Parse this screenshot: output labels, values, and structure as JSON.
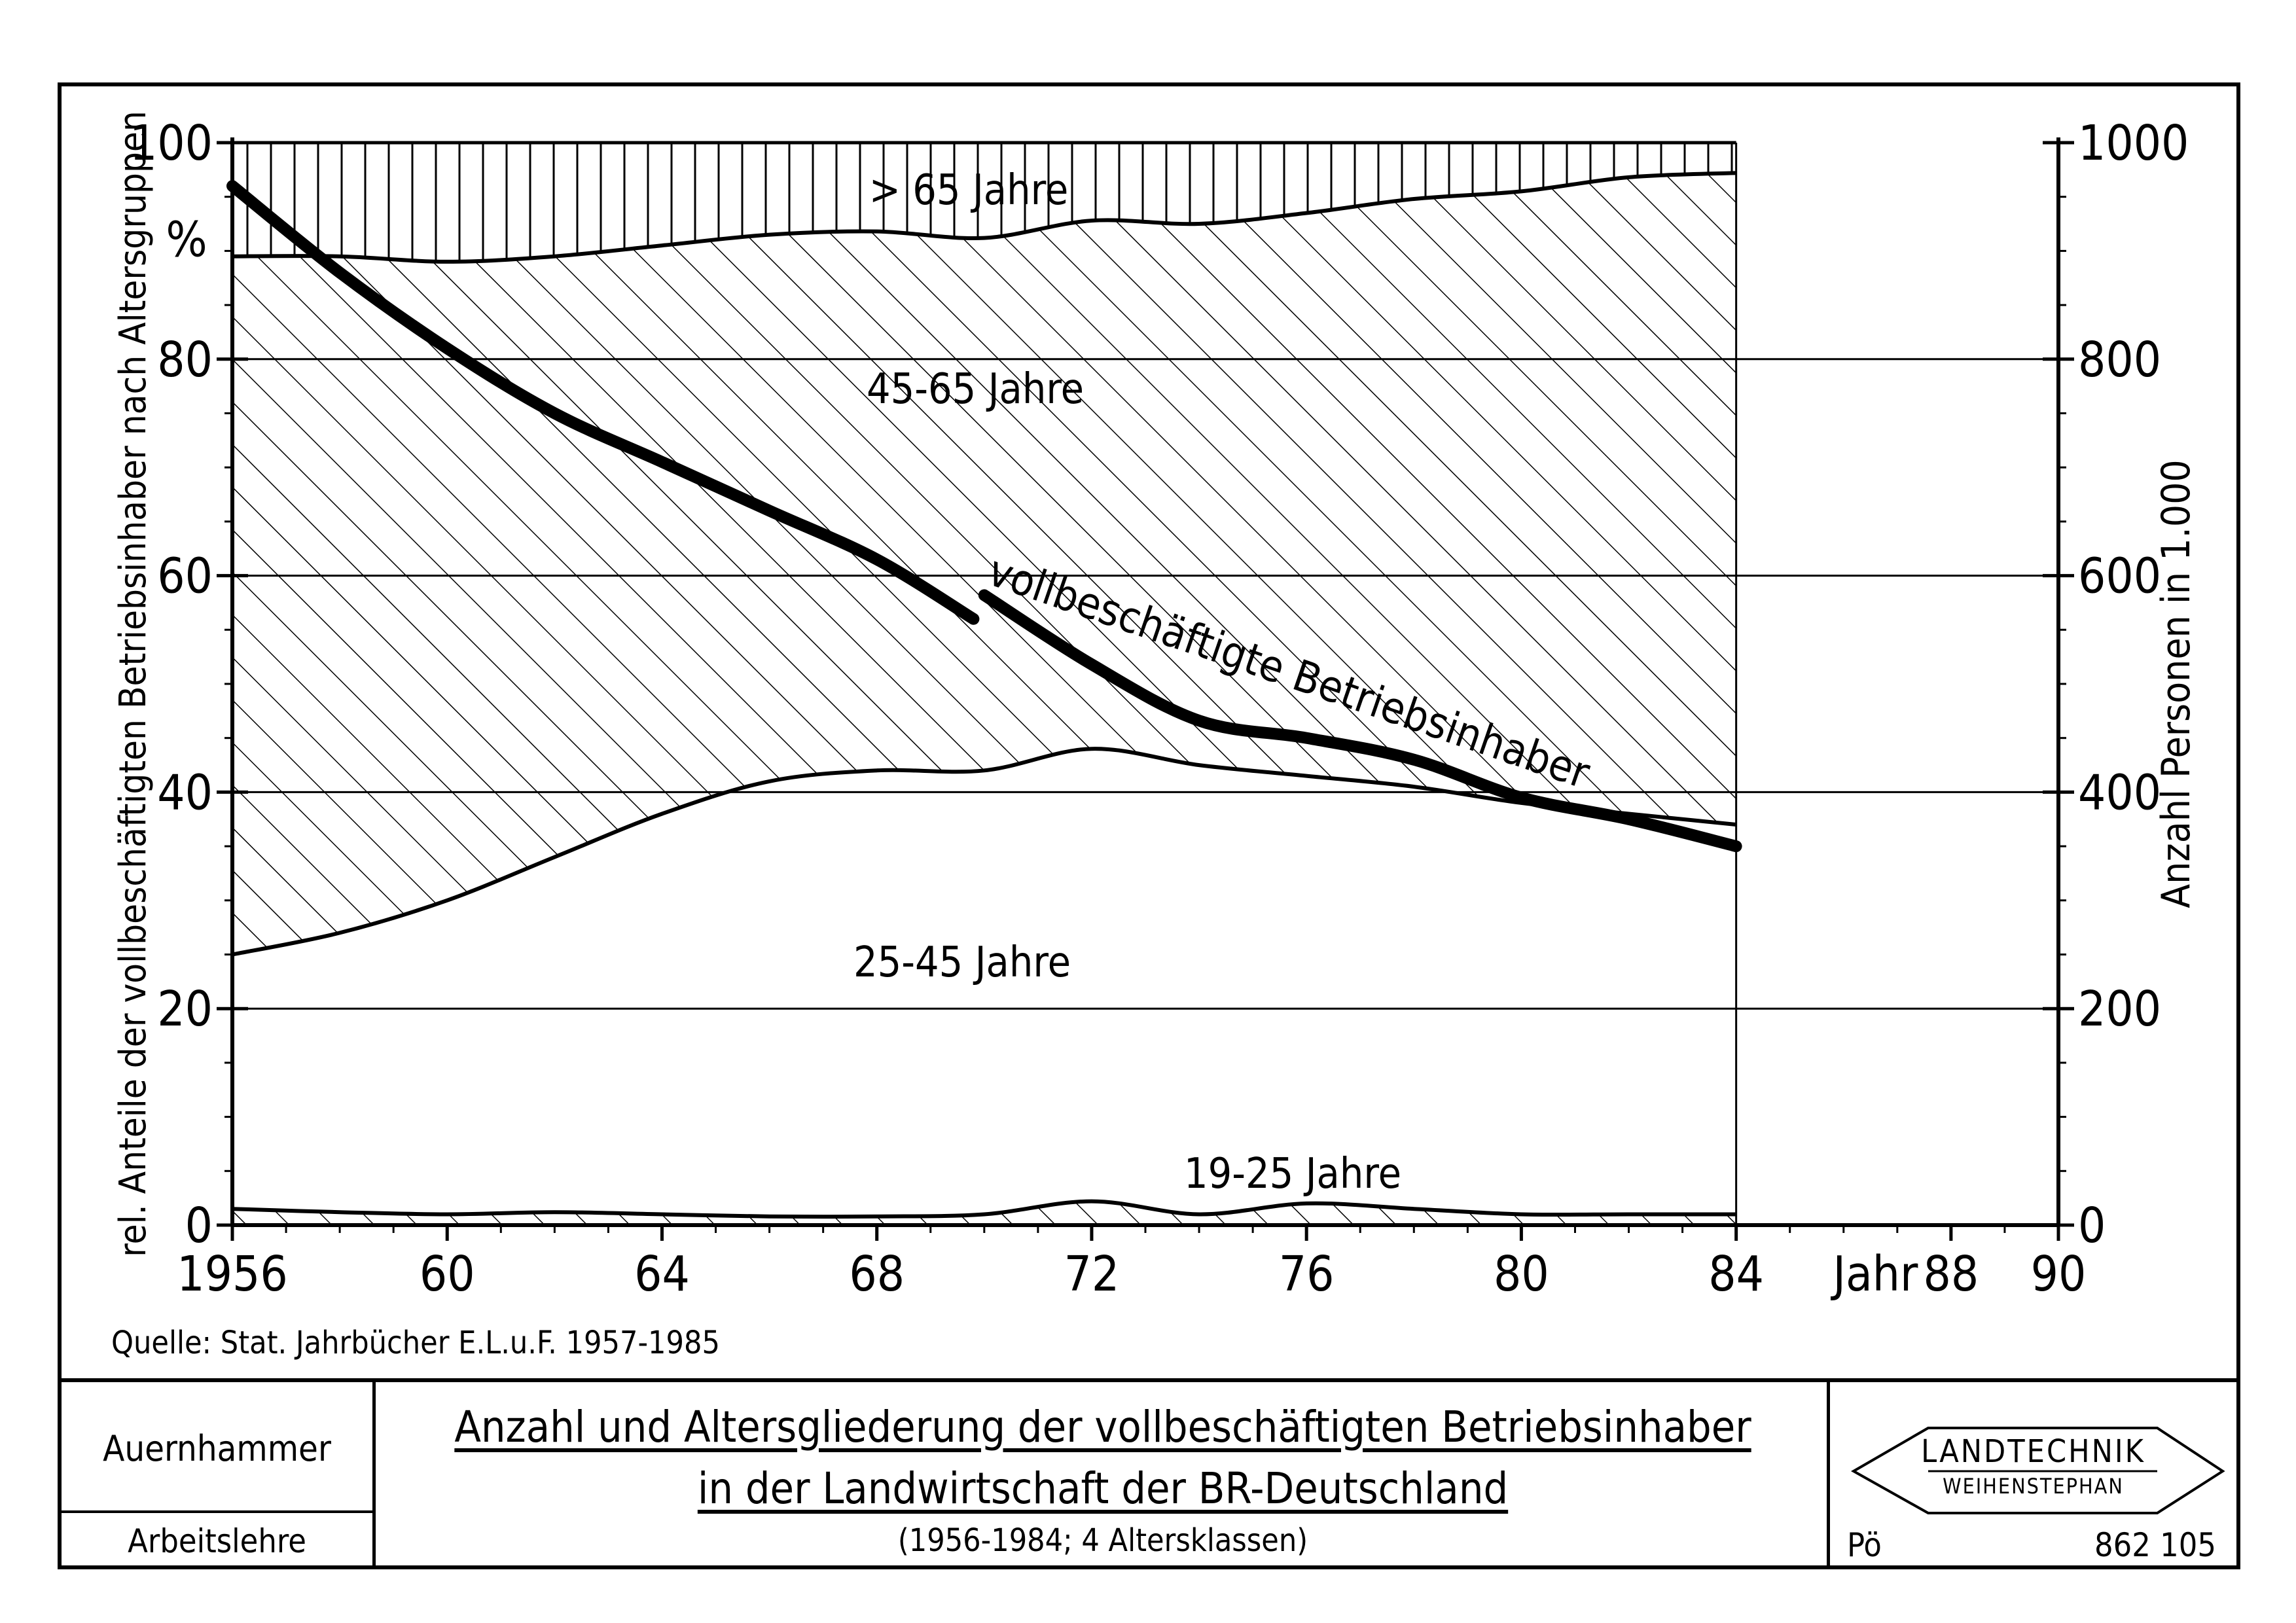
{
  "chart_data": {
    "type": "area",
    "title": "",
    "xlabel": "Jahr",
    "y_left_label": "rel. Anteile der vollbeschäftigten Betriebsinhaber nach Altersgruppen",
    "y_left_unit": "%",
    "y_right_label": "Anzahl Personen in 1.000",
    "xlim": [
      1956,
      90
    ],
    "x_ticks": [
      "1956",
      "60",
      "64",
      "68",
      "72",
      "76",
      "80",
      "84",
      "88",
      "90"
    ],
    "y_left_ticks": [
      "0",
      "20",
      "40",
      "60",
      "80",
      "100"
    ],
    "y_right_ticks": [
      "0",
      "200",
      "400",
      "600",
      "800",
      "1000"
    ],
    "ylim_left": [
      0,
      100
    ],
    "ylim_right": [
      0,
      1000
    ],
    "grid": true,
    "legend": "inline labels",
    "x": [
      1956,
      1958,
      1960,
      1962,
      1964,
      1966,
      1968,
      1970,
      1972,
      1974,
      1976,
      1978,
      1980,
      1982,
      1984
    ],
    "cumulative_boundaries": [
      {
        "name": "19-25 Jahre",
        "upper": [
          1.5,
          1.2,
          1.0,
          1.2,
          1.0,
          0.8,
          0.8,
          1.0,
          2.2,
          1.0,
          2.0,
          1.5,
          1.0,
          1.0,
          1.0
        ]
      },
      {
        "name": "25-45 Jahre",
        "upper": [
          25,
          27,
          30,
          34,
          38,
          41,
          42,
          42,
          44,
          42.5,
          41.5,
          40.5,
          39,
          38,
          37
        ]
      },
      {
        "name": "45-65 Jahre",
        "upper": [
          89.5,
          89.5,
          89,
          89.5,
          90.5,
          91.5,
          91.8,
          91.2,
          92.8,
          92.5,
          93.5,
          94.8,
          95.5,
          96.8,
          97.2
        ]
      },
      {
        "name": "> 65 Jahre",
        "upper": [
          100,
          100,
          100,
          100,
          100,
          100,
          100,
          100,
          100,
          100,
          100,
          100,
          100,
          100,
          100
        ]
      }
    ],
    "series": [
      {
        "name": "vollbeschäftigte Betriebsinhaber",
        "axis": "right",
        "x": [
          1956,
          1958,
          1960,
          1962,
          1964,
          1966,
          1968,
          1969.8,
          1970,
          1972,
          1974,
          1976,
          1978,
          1980,
          1982,
          1984
        ],
        "values": [
          960,
          880,
          810,
          750,
          705,
          660,
          615,
          560,
          582,
          518,
          466,
          450,
          430,
          395,
          375,
          350
        ]
      }
    ],
    "annotations": [
      "> 65 Jahre",
      "45-65 Jahre",
      "25-45 Jahre",
      "19-25 Jahre",
      "vollbeschäftigte Betriebsinhaber"
    ],
    "source": "Quelle: Stat. Jahrbücher E.L.u.F. 1957-1985"
  },
  "title_block": {
    "author": "Auernhammer",
    "department": "Arbeitslehre",
    "title_line1": "Anzahl und Altersgliederung der vollbeschäftigten Betriebsinhaber",
    "title_line2": "in der Landwirtschaft der BR-Deutschland",
    "subtitle": "(1956-1984; 4 Altersklassen)",
    "logo_line1": "LANDTECHNIK",
    "logo_line2": "WEIHENSTEPHAN",
    "initials": "Pö",
    "number": "862 105"
  }
}
